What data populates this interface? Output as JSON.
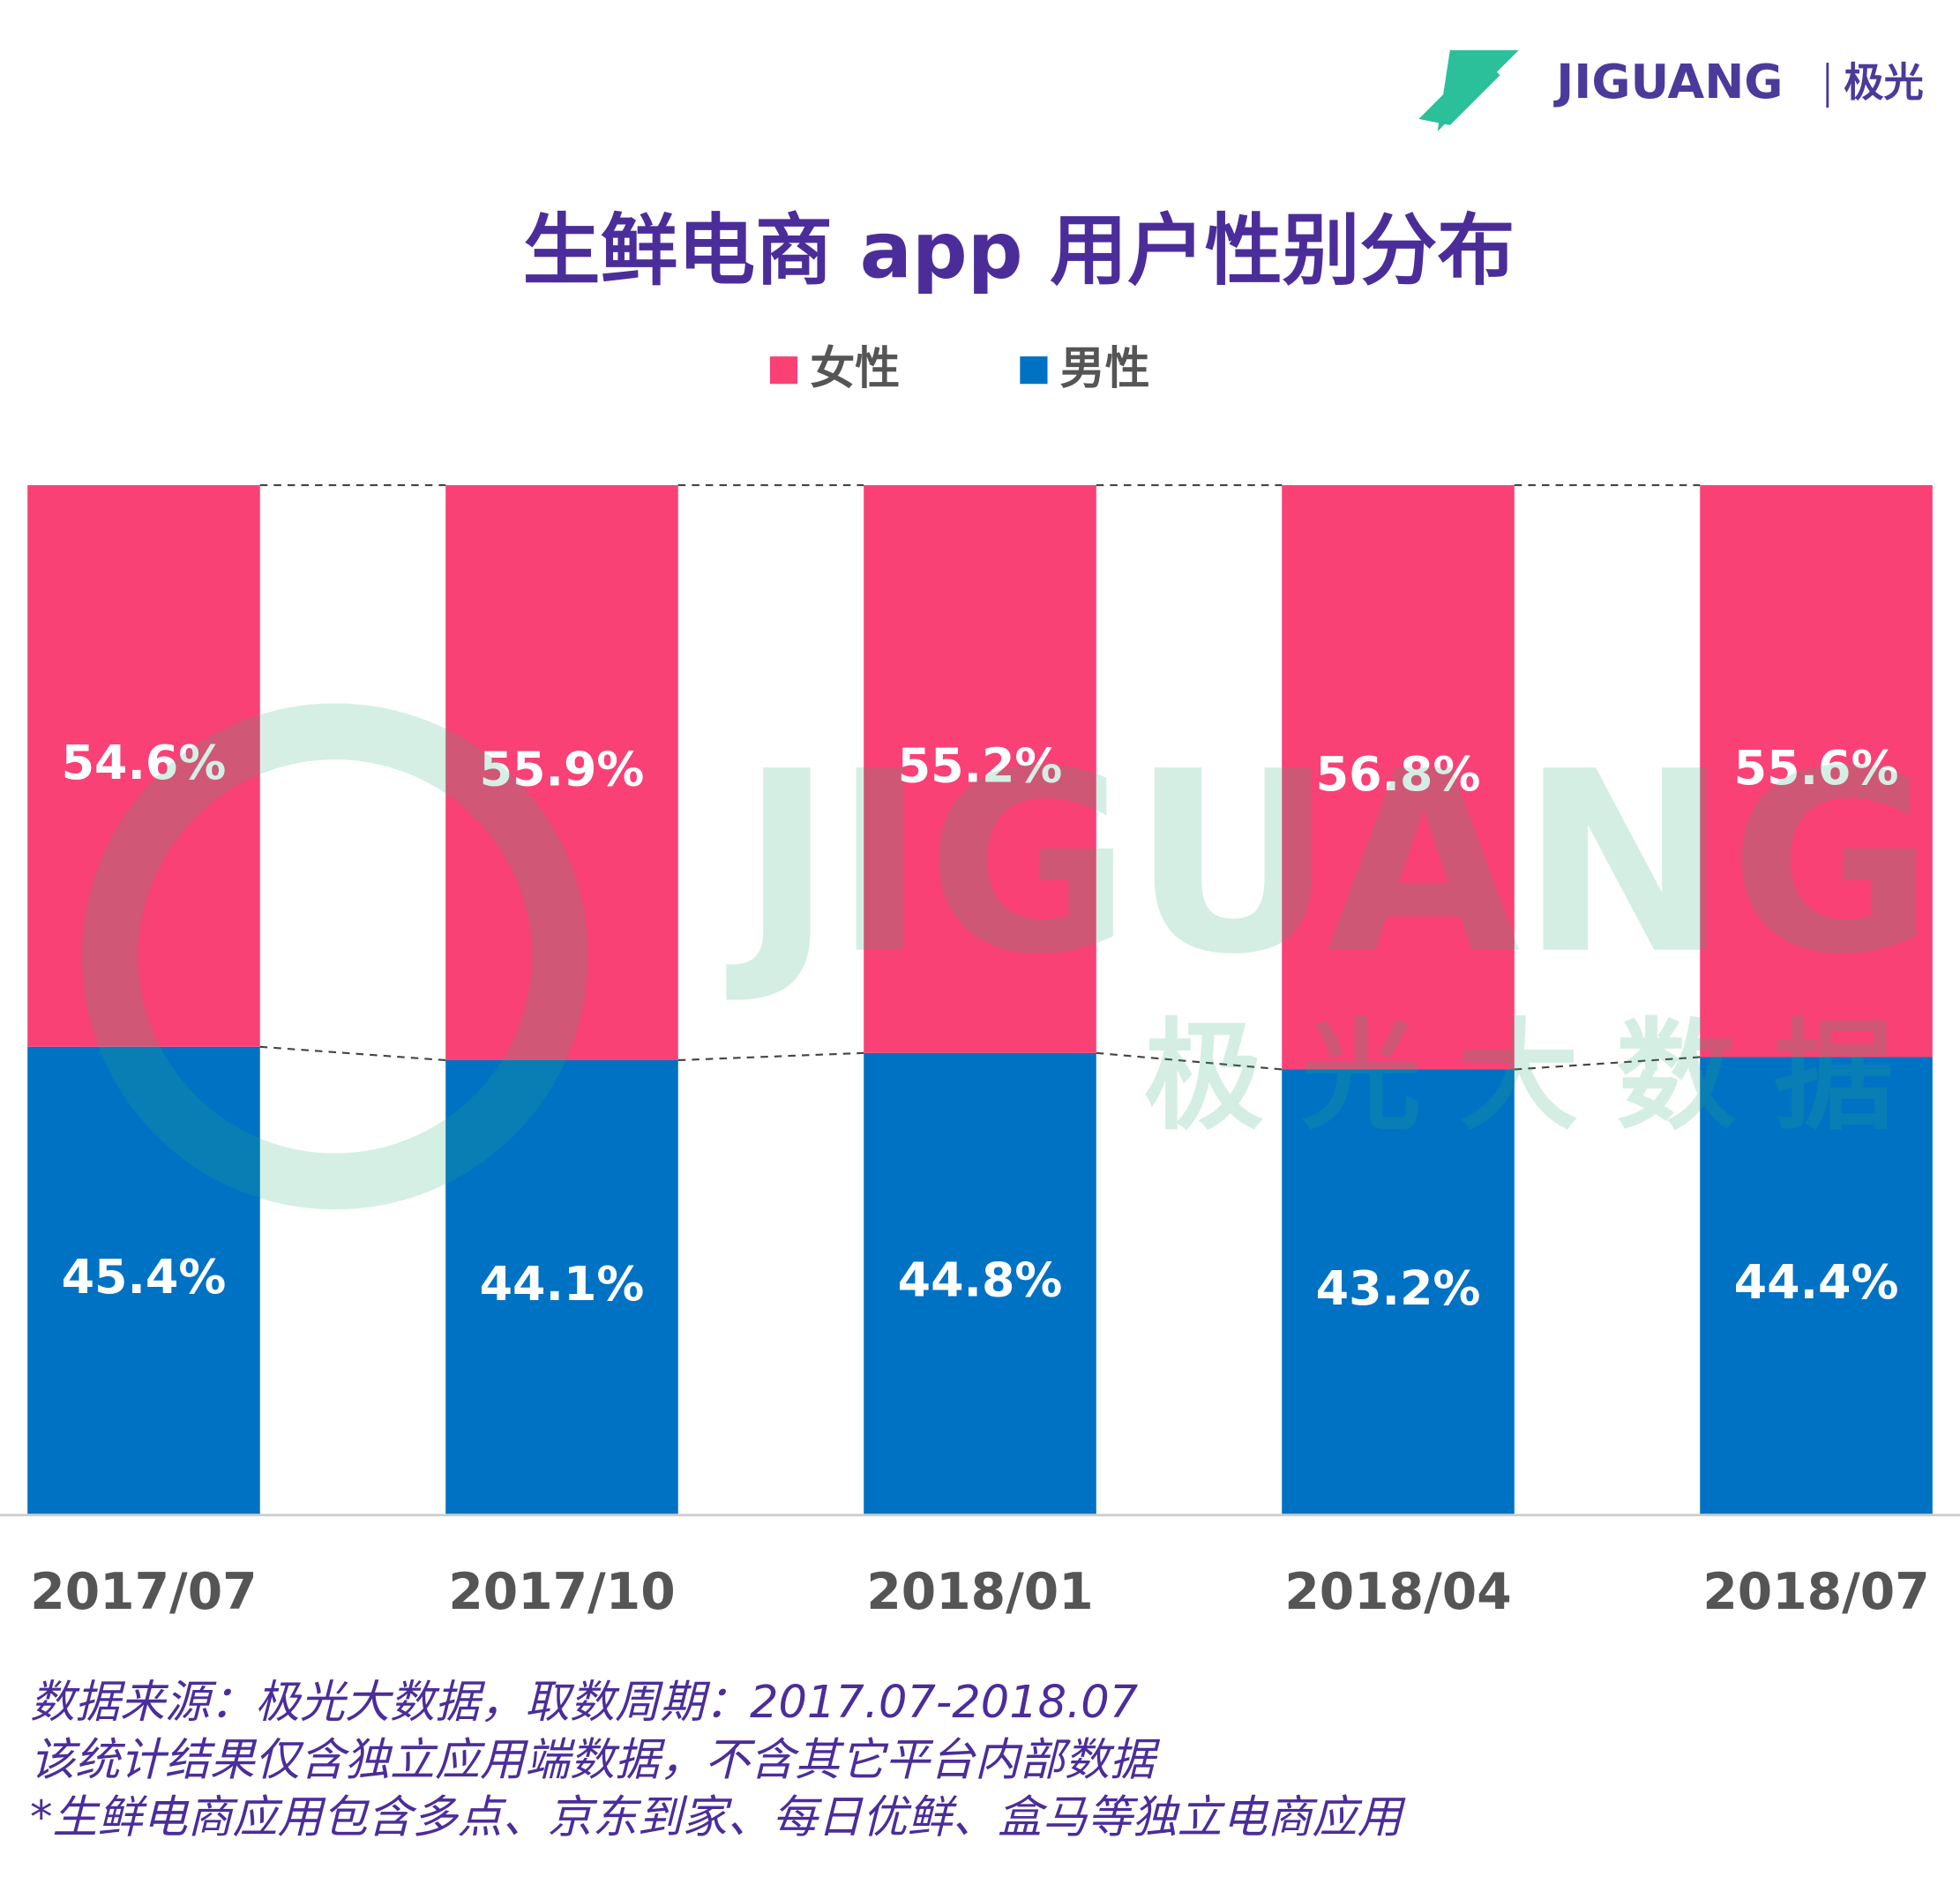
{
  "header": {
    "brand": "JIGUANG",
    "brand_cn": "极光"
  },
  "chart_data": {
    "type": "stacked_bar_100",
    "title": "生鲜电商 app 用户性别分布",
    "categories": [
      "2017/07",
      "2017/10",
      "2018/01",
      "2018/04",
      "2018/07"
    ],
    "series": [
      {
        "name": "女性",
        "color": "#f94176",
        "values": [
          54.6,
          55.9,
          55.2,
          56.8,
          55.6
        ],
        "value_labels": [
          "54.6%",
          "55.9%",
          "55.2%",
          "56.8%",
          "55.6%"
        ]
      },
      {
        "name": "男性",
        "color": "#0072c3",
        "values": [
          45.4,
          44.1,
          44.8,
          43.2,
          44.4
        ],
        "value_labels": [
          "45.4%",
          "44.1%",
          "44.8%",
          "43.2%",
          "44.4%"
        ]
      }
    ],
    "ylim": [
      0,
      100
    ],
    "legend": "top"
  },
  "watermark": {
    "text": "JIGUANG",
    "subtext": "极光大数据"
  },
  "notes": [
    "数据来源：极光大数据，取数周期：2017.07-2018.07",
    "该统计结果仅含独立应用端数据，不含其它平台内部数据",
    " *生鲜电商应用包含多点、京东到家、每日优鲜、盒马等独立电商应用"
  ]
}
